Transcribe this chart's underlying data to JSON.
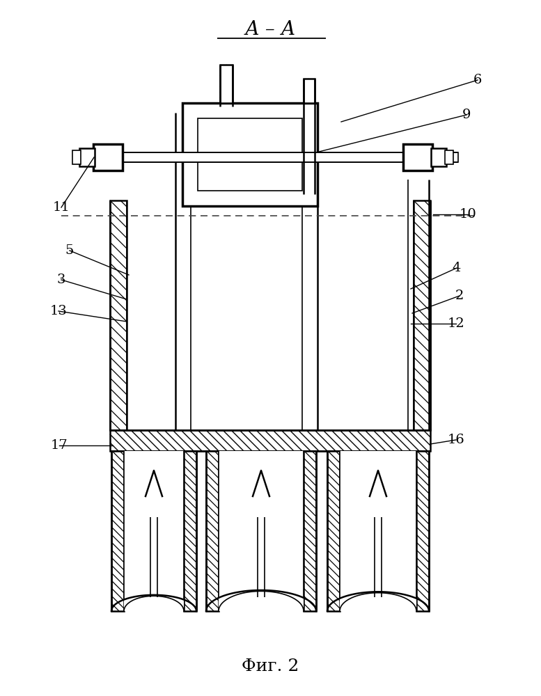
{
  "bg": "#ffffff",
  "lc": "#000000",
  "title": "А – А",
  "caption": "Фиг. 2",
  "lw_thin": 1.2,
  "lw_med": 1.8,
  "lw_thick": 2.5
}
